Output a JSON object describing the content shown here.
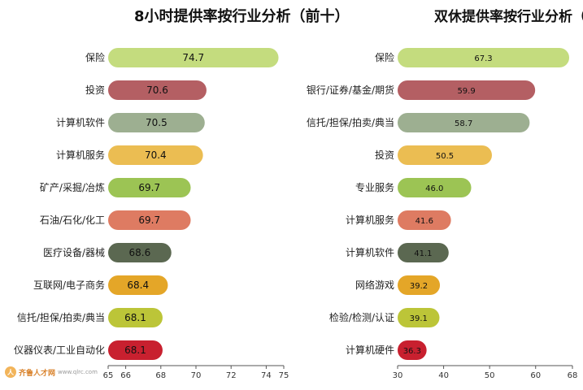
{
  "logo": {
    "brand": "齐鲁人才网",
    "url": "www.qlrc.com"
  },
  "chart_data": [
    {
      "type": "bar",
      "orientation": "horizontal",
      "title": "8小时提供率按行业分析（前十）",
      "categories": [
        "保险",
        "投资",
        "计算机软件",
        "计算机服务",
        "矿产/采掘/冶炼",
        "石油/石化/化工",
        "医疗设备/器械",
        "互联网/电子商务",
        "信托/担保/拍卖/典当",
        "仪器仪表/工业自动化"
      ],
      "values": [
        74.7,
        70.6,
        70.5,
        70.4,
        69.7,
        69.7,
        68.6,
        68.4,
        68.1,
        68.1
      ],
      "value_labels": [
        "74.7",
        "70.6",
        "70.5",
        "70.4",
        "69.7",
        "69.7",
        "68.6",
        "68.4",
        "68.1",
        "68.1"
      ],
      "colors": [
        "#c4dc7e",
        "#b45f63",
        "#9daf91",
        "#ebbd52",
        "#9cc454",
        "#de7b62",
        "#5b6851",
        "#e4a628",
        "#bcc538",
        "#c8202f"
      ],
      "xlim": [
        65,
        75
      ],
      "xticks": [
        65,
        66,
        68,
        70,
        72,
        74,
        75
      ],
      "xticks_labels": [
        "65",
        "66",
        "68",
        "70",
        "72",
        "74",
        "75"
      ]
    },
    {
      "type": "bar",
      "orientation": "horizontal",
      "title": "双休提供率按行业分析（前十）",
      "categories": [
        "保险",
        "银行/证券/基金/期货",
        "信托/担保/拍卖/典当",
        "投资",
        "专业服务",
        "计算机服务",
        "计算机软件",
        "网络游戏",
        "检验/检测/认证",
        "计算机硬件"
      ],
      "values": [
        67.3,
        59.9,
        58.7,
        50.5,
        46.0,
        41.6,
        41.1,
        39.2,
        39.1,
        36.3
      ],
      "value_labels": [
        "67.3",
        "59.9",
        "58.7",
        "50.5",
        "46.0",
        "41.6",
        "41.1",
        "39.2",
        "39.1",
        "36.3"
      ],
      "colors": [
        "#c4dc7e",
        "#b45f63",
        "#9daf91",
        "#ebbd52",
        "#9cc454",
        "#de7b62",
        "#5b6851",
        "#e4a628",
        "#bcc538",
        "#c8202f"
      ],
      "xlim": [
        30,
        68
      ],
      "xticks": [
        30,
        40,
        50,
        60,
        68
      ],
      "xticks_labels": [
        "30",
        "40",
        "50",
        "60",
        "68"
      ]
    }
  ]
}
